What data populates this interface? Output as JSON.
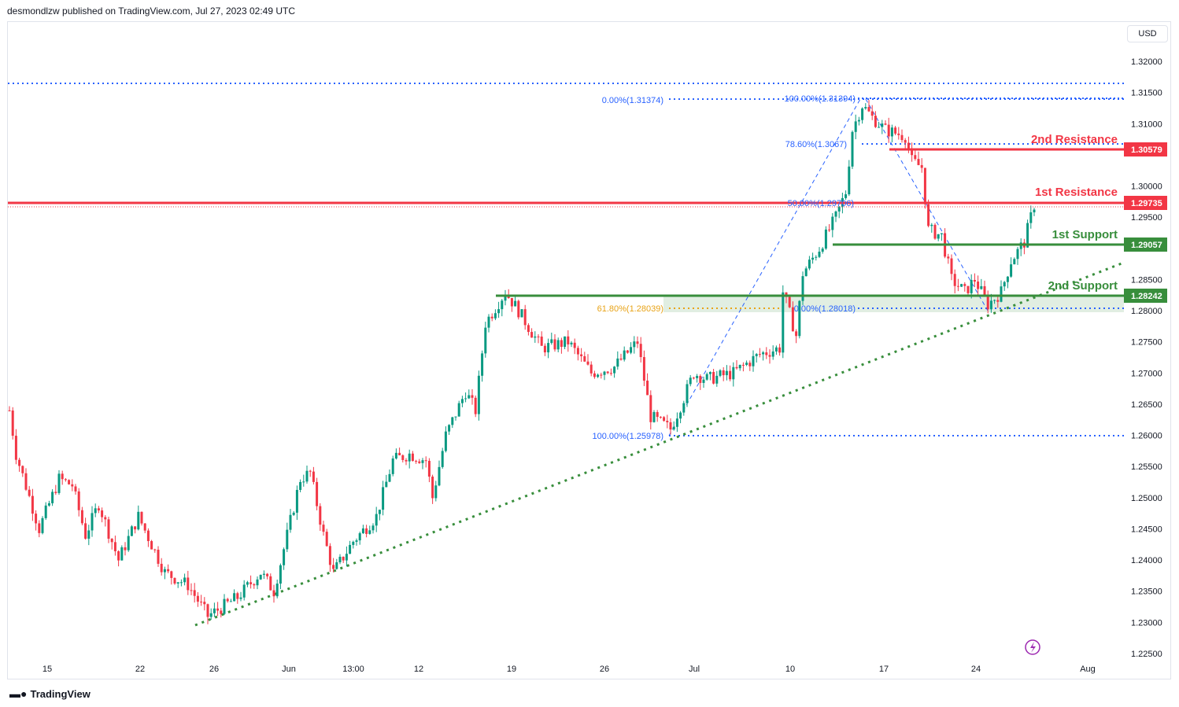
{
  "header": "desmondlzw published on TradingView.com, Jul 27, 2023 02:49 UTC",
  "brand": "TradingView",
  "currency": "USD",
  "colors": {
    "up": "#089981",
    "down": "#f23645",
    "fib": "#2962ff",
    "support": "#388e3c",
    "resistance": "#f23645",
    "golden": "#e8a317"
  },
  "chart_data": {
    "type": "candlestick",
    "title": "",
    "ylim": [
      1.2225,
      1.3225
    ],
    "y_ticks": [
      "1.32000",
      "1.31500",
      "1.31000",
      "1.30000",
      "1.29500",
      "1.28500",
      "1.28000",
      "1.27500",
      "1.27000",
      "1.26500",
      "1.26000",
      "1.25500",
      "1.25000",
      "1.24500",
      "1.24000",
      "1.23500",
      "1.23000",
      "1.22500"
    ],
    "x_ticks": [
      "15",
      "22",
      "26",
      "Jun",
      "13:00",
      "12",
      "19",
      "26",
      "Jul",
      "10",
      "17",
      "24",
      "Aug"
    ],
    "close_path": [
      [
        0,
        1.264
      ],
      [
        2,
        1.257
      ],
      [
        9,
        1.245
      ],
      [
        15,
        1.253
      ],
      [
        19,
        1.252
      ],
      [
        23,
        1.244
      ],
      [
        27,
        1.249
      ],
      [
        33,
        1.24
      ],
      [
        39,
        1.247
      ],
      [
        47,
        1.238
      ],
      [
        54,
        1.236
      ],
      [
        60,
        1.231
      ],
      [
        69,
        1.234
      ],
      [
        76,
        1.238
      ],
      [
        80,
        1.235
      ],
      [
        88,
        1.253
      ],
      [
        91,
        1.254
      ],
      [
        95,
        1.244
      ],
      [
        98,
        1.238
      ],
      [
        104,
        1.243
      ],
      [
        111,
        1.247
      ],
      [
        116,
        1.256
      ],
      [
        121,
        1.257
      ],
      [
        126,
        1.256
      ],
      [
        128,
        1.25
      ],
      [
        132,
        1.26
      ],
      [
        138,
        1.267
      ],
      [
        141,
        1.264
      ],
      [
        144,
        1.278
      ],
      [
        150,
        1.283
      ],
      [
        154,
        1.28
      ],
      [
        161,
        1.274
      ],
      [
        169,
        1.275
      ],
      [
        176,
        1.27
      ],
      [
        183,
        1.271
      ],
      [
        190,
        1.275
      ],
      [
        194,
        1.263
      ],
      [
        200,
        1.261
      ],
      [
        204,
        1.266
      ],
      [
        207,
        1.27
      ],
      [
        211,
        1.269
      ],
      [
        219,
        1.27
      ],
      [
        227,
        1.273
      ],
      [
        233,
        1.274
      ],
      [
        234,
        1.283
      ],
      [
        238,
        1.276
      ],
      [
        240,
        1.286
      ],
      [
        245,
        1.29
      ],
      [
        250,
        1.295
      ],
      [
        253,
        1.299
      ],
      [
        255,
        1.309
      ],
      [
        258,
        1.313
      ],
      [
        261,
        1.311
      ],
      [
        265,
        1.309
      ],
      [
        271,
        1.308
      ],
      [
        273,
        1.304
      ],
      [
        276,
        1.303
      ],
      [
        278,
        1.293
      ],
      [
        282,
        1.292
      ],
      [
        285,
        1.285
      ],
      [
        289,
        1.283
      ],
      [
        292,
        1.285
      ],
      [
        296,
        1.281
      ],
      [
        300,
        1.283
      ],
      [
        303,
        1.288
      ],
      [
        307,
        1.291
      ],
      [
        310,
        1.297
      ]
    ],
    "levels": [
      {
        "label": "2nd Resistance",
        "value": "1.30579",
        "kind": "resistance"
      },
      {
        "label": "1st Resistance",
        "value": "1.29735",
        "kind": "resistance"
      },
      {
        "label": "1st Support",
        "value": "1.29057",
        "kind": "support"
      },
      {
        "label": "2nd Support",
        "value": "1.28242",
        "kind": "support"
      }
    ],
    "fib_labels": {
      "a0": "0.00%(1.31374)",
      "b100": "100.00%(1.31394)",
      "b786": "78.60%(1.3067)",
      "b50": "50.00%(1.29706)",
      "a618": "61.80%(1.28039)",
      "b0": "0.00%(1.28018)",
      "a100": "100.00%(1.25978)"
    }
  }
}
